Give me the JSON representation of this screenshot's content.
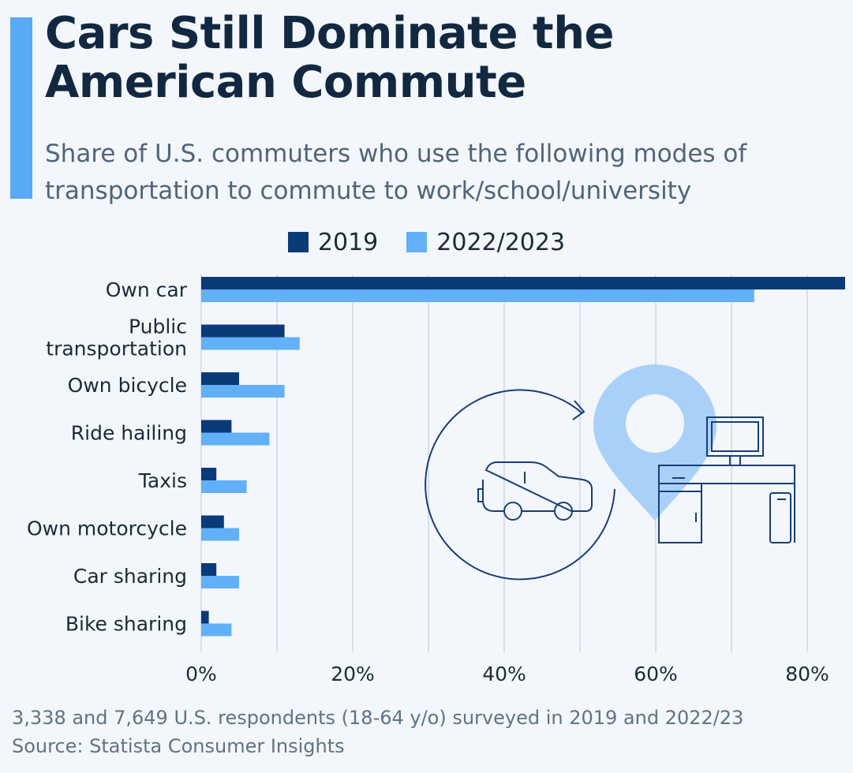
{
  "header": {
    "title": "Cars Still Dominate the American Commute",
    "subtitle": "Share of U.S. commuters who use the following modes of transportation to commute to work/school/university"
  },
  "legend": [
    {
      "label": "2019",
      "color": "#0b3a78"
    },
    {
      "label": "2022/2023",
      "color": "#62b0f7"
    }
  ],
  "chart_data": {
    "type": "bar",
    "orientation": "horizontal",
    "title": "Cars Still Dominate the American Commute",
    "categories": [
      [
        "Own car"
      ],
      [
        "Public",
        "transportation"
      ],
      [
        "Own bicycle"
      ],
      [
        "Ride hailing"
      ],
      [
        "Taxis"
      ],
      [
        "Own motorcycle"
      ],
      [
        "Car sharing"
      ],
      [
        "Bike sharing"
      ]
    ],
    "series": [
      {
        "name": "2019",
        "values": [
          85,
          11,
          5,
          4,
          2,
          3,
          2,
          1
        ]
      },
      {
        "name": "2022/2023",
        "values": [
          73,
          13,
          11,
          9,
          6,
          5,
          5,
          4
        ]
      }
    ],
    "xlim": [
      0,
      85
    ],
    "ticks": [
      0,
      20,
      40,
      60,
      80
    ],
    "tick_labels": [
      "0%",
      "20%",
      "40%",
      "60%",
      "80%"
    ],
    "xlabel": "",
    "ylabel": "",
    "grid": true
  },
  "footer": {
    "note": "3,338 and 7,649 U.S. respondents (18-64 y/o) surveyed in 2019 and 2022/23",
    "source": "Source: Statista Consumer Insights"
  },
  "illustration": {
    "icons": [
      "car-icon",
      "circular-arrow-icon",
      "location-pin-icon",
      "desk-icon",
      "computer-monitor-icon"
    ]
  }
}
